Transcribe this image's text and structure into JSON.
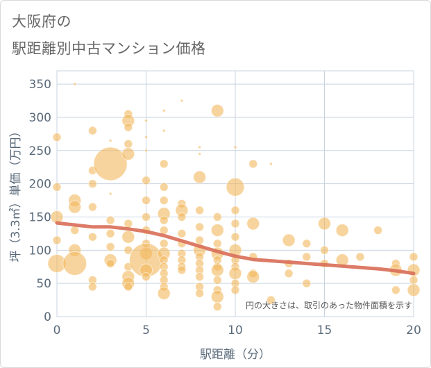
{
  "title_lines": [
    "大阪府の",
    "駅距離別中古マンション価格"
  ],
  "chart_data": {
    "type": "scatter",
    "xlabel": "駅距離（分）",
    "ylabel": "坪（3.3㎡）単価（万円）",
    "xlim": [
      0,
      20
    ],
    "ylim": [
      0,
      370
    ],
    "xticks": [
      0,
      5,
      10,
      15,
      20
    ],
    "yticks": [
      0,
      50,
      100,
      150,
      200,
      250,
      300,
      350
    ],
    "grid": true,
    "annotation": "円の大きさは、取引のあった物件面積を示す",
    "colors": {
      "bubble": "#f2b85c",
      "trend": "#d9705a",
      "grid": "#c8d3e0",
      "axis_text": "#5a6a7a"
    },
    "points": [
      {
        "x": 0,
        "y": 270,
        "s": 2
      },
      {
        "x": 0,
        "y": 195,
        "s": 2
      },
      {
        "x": 0,
        "y": 150,
        "s": 3
      },
      {
        "x": 0,
        "y": 115,
        "s": 2
      },
      {
        "x": 0,
        "y": 80,
        "s": 4
      },
      {
        "x": 1,
        "y": 350,
        "s": 1
      },
      {
        "x": 1,
        "y": 175,
        "s": 3
      },
      {
        "x": 1,
        "y": 165,
        "s": 3
      },
      {
        "x": 1,
        "y": 130,
        "s": 2
      },
      {
        "x": 1,
        "y": 100,
        "s": 3
      },
      {
        "x": 1,
        "y": 80,
        "s": 5
      },
      {
        "x": 2,
        "y": 280,
        "s": 2
      },
      {
        "x": 2,
        "y": 220,
        "s": 2
      },
      {
        "x": 2,
        "y": 200,
        "s": 2
      },
      {
        "x": 2,
        "y": 165,
        "s": 2
      },
      {
        "x": 2,
        "y": 120,
        "s": 2
      },
      {
        "x": 2,
        "y": 55,
        "s": 2
      },
      {
        "x": 2,
        "y": 45,
        "s": 2
      },
      {
        "x": 3,
        "y": 265,
        "s": 1
      },
      {
        "x": 3,
        "y": 230,
        "s": 6
      },
      {
        "x": 3,
        "y": 185,
        "s": 1
      },
      {
        "x": 3,
        "y": 145,
        "s": 2
      },
      {
        "x": 3,
        "y": 125,
        "s": 2
      },
      {
        "x": 3,
        "y": 105,
        "s": 2
      },
      {
        "x": 3,
        "y": 85,
        "s": 3
      },
      {
        "x": 3,
        "y": 80,
        "s": 2
      },
      {
        "x": 4,
        "y": 305,
        "s": 2
      },
      {
        "x": 4,
        "y": 295,
        "s": 3
      },
      {
        "x": 4,
        "y": 285,
        "s": 2
      },
      {
        "x": 4,
        "y": 260,
        "s": 2
      },
      {
        "x": 4,
        "y": 245,
        "s": 3
      },
      {
        "x": 4,
        "y": 140,
        "s": 2
      },
      {
        "x": 4,
        "y": 120,
        "s": 3
      },
      {
        "x": 4,
        "y": 100,
        "s": 2
      },
      {
        "x": 4,
        "y": 75,
        "s": 2
      },
      {
        "x": 4,
        "y": 60,
        "s": 3
      },
      {
        "x": 4,
        "y": 50,
        "s": 3
      },
      {
        "x": 4,
        "y": 45,
        "s": 2
      },
      {
        "x": 5,
        "y": 295,
        "s": 1
      },
      {
        "x": 5,
        "y": 270,
        "s": 1
      },
      {
        "x": 5,
        "y": 250,
        "s": 1
      },
      {
        "x": 5,
        "y": 205,
        "s": 2
      },
      {
        "x": 5,
        "y": 175,
        "s": 2
      },
      {
        "x": 5,
        "y": 150,
        "s": 2
      },
      {
        "x": 5,
        "y": 130,
        "s": 2
      },
      {
        "x": 5,
        "y": 110,
        "s": 2
      },
      {
        "x": 5,
        "y": 95,
        "s": 3
      },
      {
        "x": 5,
        "y": 85,
        "s": 6
      },
      {
        "x": 5,
        "y": 70,
        "s": 3
      },
      {
        "x": 5,
        "y": 60,
        "s": 2
      },
      {
        "x": 6,
        "y": 310,
        "s": 1
      },
      {
        "x": 6,
        "y": 280,
        "s": 1
      },
      {
        "x": 6,
        "y": 230,
        "s": 2
      },
      {
        "x": 6,
        "y": 195,
        "s": 2
      },
      {
        "x": 6,
        "y": 175,
        "s": 2
      },
      {
        "x": 6,
        "y": 155,
        "s": 3
      },
      {
        "x": 6,
        "y": 145,
        "s": 2
      },
      {
        "x": 6,
        "y": 130,
        "s": 2
      },
      {
        "x": 6,
        "y": 110,
        "s": 2
      },
      {
        "x": 6,
        "y": 95,
        "s": 3
      },
      {
        "x": 6,
        "y": 85,
        "s": 2
      },
      {
        "x": 6,
        "y": 75,
        "s": 2
      },
      {
        "x": 6,
        "y": 65,
        "s": 2
      },
      {
        "x": 6,
        "y": 55,
        "s": 2
      },
      {
        "x": 6,
        "y": 45,
        "s": 2
      },
      {
        "x": 6,
        "y": 35,
        "s": 3
      },
      {
        "x": 7,
        "y": 325,
        "s": 1
      },
      {
        "x": 7,
        "y": 170,
        "s": 2
      },
      {
        "x": 7,
        "y": 160,
        "s": 3
      },
      {
        "x": 7,
        "y": 150,
        "s": 2
      },
      {
        "x": 7,
        "y": 125,
        "s": 2
      },
      {
        "x": 7,
        "y": 110,
        "s": 2
      },
      {
        "x": 7,
        "y": 95,
        "s": 2
      },
      {
        "x": 7,
        "y": 85,
        "s": 2
      },
      {
        "x": 7,
        "y": 75,
        "s": 2
      },
      {
        "x": 7,
        "y": 70,
        "s": 2
      },
      {
        "x": 8,
        "y": 255,
        "s": 1
      },
      {
        "x": 8,
        "y": 245,
        "s": 1
      },
      {
        "x": 8,
        "y": 210,
        "s": 3
      },
      {
        "x": 8,
        "y": 160,
        "s": 2
      },
      {
        "x": 8,
        "y": 135,
        "s": 2
      },
      {
        "x": 8,
        "y": 115,
        "s": 2
      },
      {
        "x": 8,
        "y": 100,
        "s": 3
      },
      {
        "x": 8,
        "y": 90,
        "s": 2
      },
      {
        "x": 8,
        "y": 80,
        "s": 2
      },
      {
        "x": 8,
        "y": 70,
        "s": 2
      },
      {
        "x": 8,
        "y": 60,
        "s": 2
      },
      {
        "x": 8,
        "y": 45,
        "s": 2
      },
      {
        "x": 8,
        "y": 35,
        "s": 2
      },
      {
        "x": 9,
        "y": 310,
        "s": 3
      },
      {
        "x": 9,
        "y": 150,
        "s": 2
      },
      {
        "x": 9,
        "y": 130,
        "s": 3
      },
      {
        "x": 9,
        "y": 110,
        "s": 2
      },
      {
        "x": 9,
        "y": 95,
        "s": 3
      },
      {
        "x": 9,
        "y": 85,
        "s": 2
      },
      {
        "x": 9,
        "y": 75,
        "s": 2
      },
      {
        "x": 9,
        "y": 70,
        "s": 3
      },
      {
        "x": 9,
        "y": 55,
        "s": 2
      },
      {
        "x": 9,
        "y": 40,
        "s": 2
      },
      {
        "x": 9,
        "y": 30,
        "s": 3
      },
      {
        "x": 9,
        "y": 15,
        "s": 2
      },
      {
        "x": 10,
        "y": 255,
        "s": 1
      },
      {
        "x": 10,
        "y": 195,
        "s": 4
      },
      {
        "x": 10,
        "y": 160,
        "s": 2
      },
      {
        "x": 10,
        "y": 140,
        "s": 2
      },
      {
        "x": 10,
        "y": 120,
        "s": 2
      },
      {
        "x": 10,
        "y": 100,
        "s": 3
      },
      {
        "x": 10,
        "y": 85,
        "s": 2
      },
      {
        "x": 10,
        "y": 75,
        "s": 2
      },
      {
        "x": 10,
        "y": 65,
        "s": 3
      },
      {
        "x": 10,
        "y": 50,
        "s": 2
      },
      {
        "x": 10,
        "y": 40,
        "s": 2
      },
      {
        "x": 11,
        "y": 230,
        "s": 2
      },
      {
        "x": 11,
        "y": 140,
        "s": 3
      },
      {
        "x": 11,
        "y": 90,
        "s": 2
      },
      {
        "x": 11,
        "y": 65,
        "s": 2
      },
      {
        "x": 11,
        "y": 60,
        "s": 3
      },
      {
        "x": 12,
        "y": 230,
        "s": 1
      },
      {
        "x": 12,
        "y": 25,
        "s": 2
      },
      {
        "x": 13,
        "y": 115,
        "s": 3
      },
      {
        "x": 13,
        "y": 80,
        "s": 2
      },
      {
        "x": 13,
        "y": 65,
        "s": 2
      },
      {
        "x": 14,
        "y": 110,
        "s": 2
      },
      {
        "x": 14,
        "y": 90,
        "s": 2
      },
      {
        "x": 14,
        "y": 50,
        "s": 2
      },
      {
        "x": 15,
        "y": 140,
        "s": 3
      },
      {
        "x": 15,
        "y": 100,
        "s": 2
      },
      {
        "x": 15,
        "y": 80,
        "s": 2
      },
      {
        "x": 16,
        "y": 130,
        "s": 3
      },
      {
        "x": 16,
        "y": 85,
        "s": 3
      },
      {
        "x": 17,
        "y": 90,
        "s": 2
      },
      {
        "x": 18,
        "y": 130,
        "s": 2
      },
      {
        "x": 19,
        "y": 80,
        "s": 2
      },
      {
        "x": 19,
        "y": 70,
        "s": 3
      },
      {
        "x": 19,
        "y": 40,
        "s": 2
      },
      {
        "x": 20,
        "y": 90,
        "s": 2
      },
      {
        "x": 20,
        "y": 70,
        "s": 3
      },
      {
        "x": 20,
        "y": 55,
        "s": 2
      },
      {
        "x": 20,
        "y": 40,
        "s": 3
      }
    ],
    "trend": [
      {
        "x": 0,
        "y": 141
      },
      {
        "x": 1,
        "y": 138
      },
      {
        "x": 2,
        "y": 135
      },
      {
        "x": 3,
        "y": 135
      },
      {
        "x": 4,
        "y": 132
      },
      {
        "x": 5,
        "y": 128
      },
      {
        "x": 6,
        "y": 122
      },
      {
        "x": 7,
        "y": 114
      },
      {
        "x": 8,
        "y": 106
      },
      {
        "x": 9,
        "y": 98
      },
      {
        "x": 10,
        "y": 91
      },
      {
        "x": 11,
        "y": 86
      },
      {
        "x": 12,
        "y": 84
      },
      {
        "x": 13,
        "y": 82
      },
      {
        "x": 14,
        "y": 80
      },
      {
        "x": 15,
        "y": 78
      },
      {
        "x": 16,
        "y": 76
      },
      {
        "x": 17,
        "y": 74
      },
      {
        "x": 18,
        "y": 72
      },
      {
        "x": 19,
        "y": 69
      },
      {
        "x": 20,
        "y": 65
      }
    ]
  }
}
